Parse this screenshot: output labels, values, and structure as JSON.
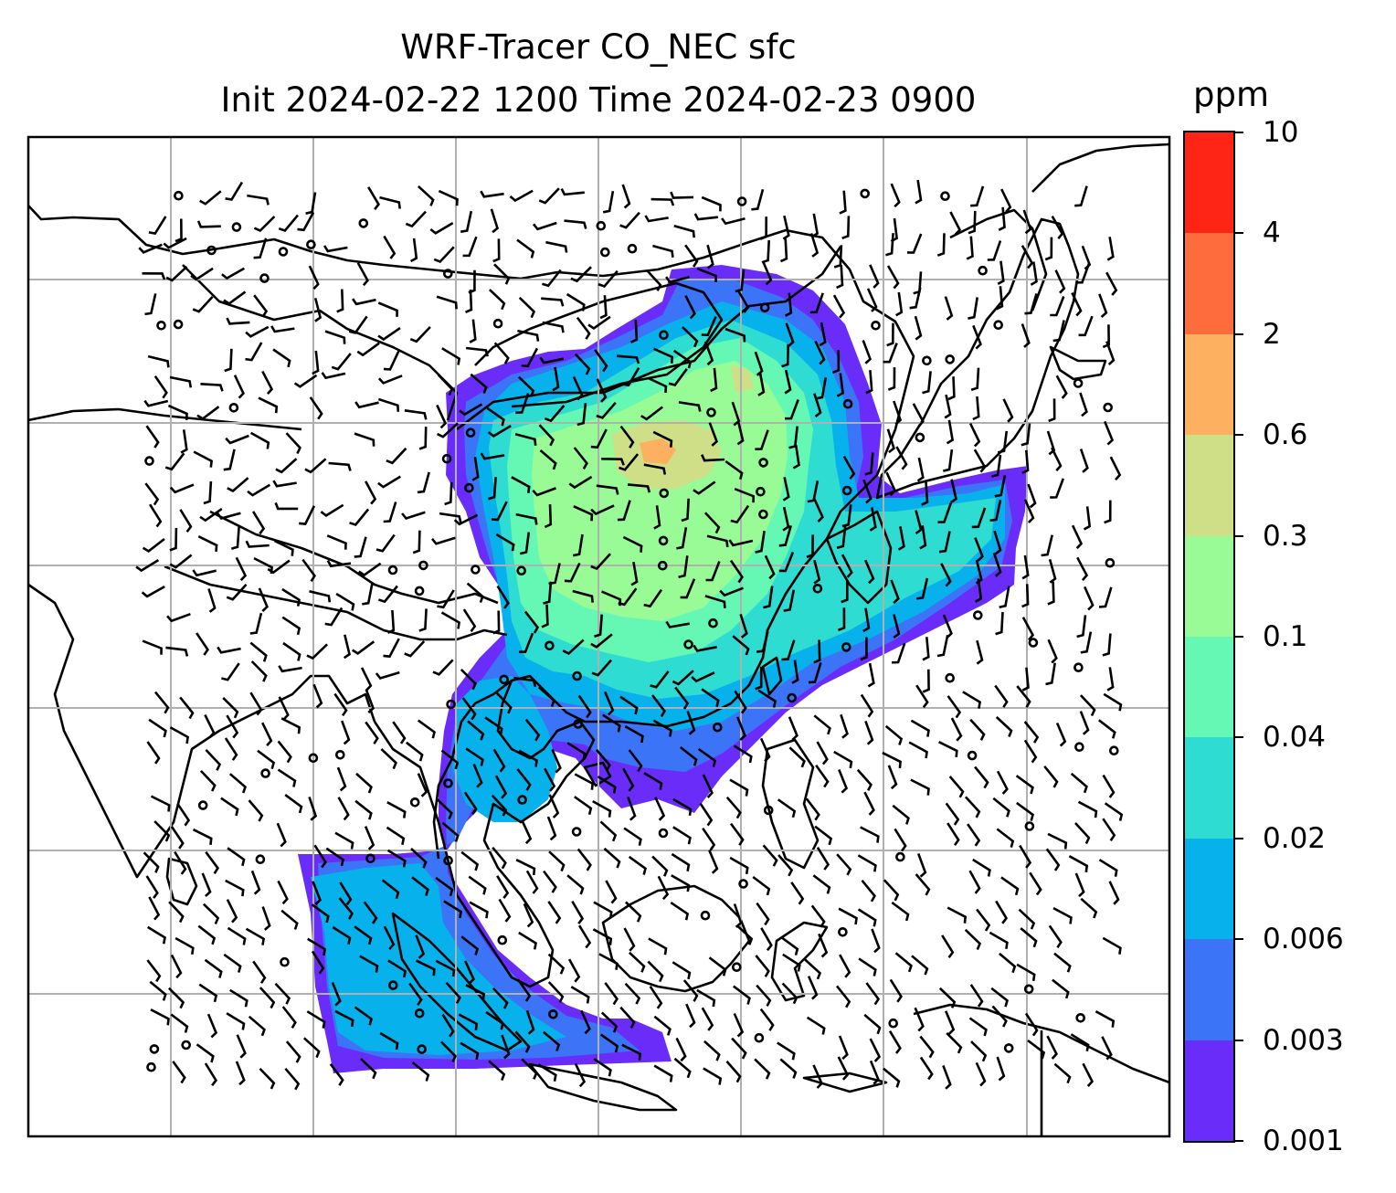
{
  "title_line1": "WRF-Tracer CO_NEC sfc",
  "title_line2": "Init 2024-02-22 1200 Time 2024-02-23 0900",
  "colorbar": {
    "unit": "ppm",
    "levels": [
      "0.001",
      "0.003",
      "0.006",
      "0.02",
      "0.04",
      "0.1",
      "0.3",
      "0.6",
      "2",
      "4",
      "10"
    ],
    "colors": [
      "#6a2df9",
      "#3b74f6",
      "#07b1eb",
      "#2fdcd2",
      "#64f8b4",
      "#99fb96",
      "#cfdf88",
      "#fdb05f",
      "#fe6c3d",
      "#ff2516"
    ]
  },
  "map": {
    "projection": "regional lat-lon, East/Southeast Asia",
    "gridlines": true,
    "field": "CO_NEC surface tracer concentration",
    "overlay": "wind barbs"
  }
}
